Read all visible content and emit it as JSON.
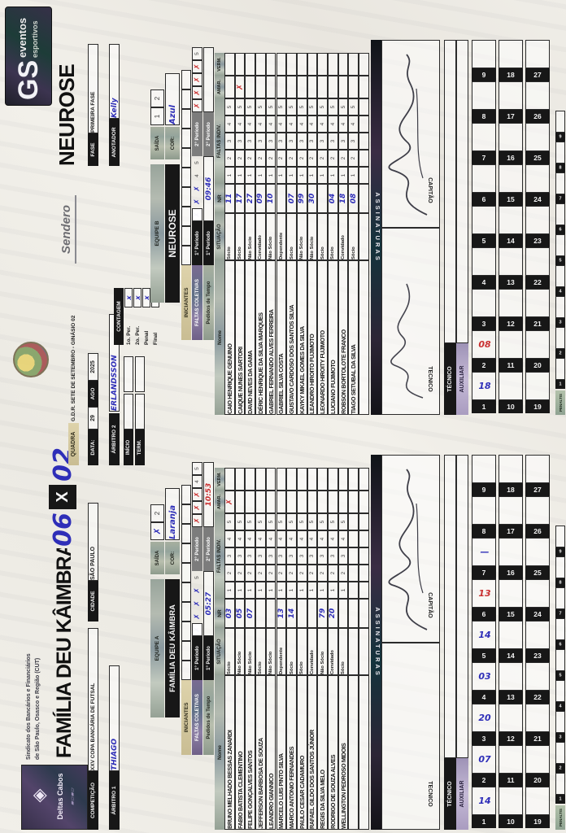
{
  "match": {
    "home_title": "FAMÍLIA DEU KÂIMBRA",
    "score_home": "06",
    "score_x": "X",
    "score_away": "02",
    "away_title": "NEUROSE"
  },
  "logos": {
    "deltas_line1": "Deltas Cabos",
    "sindicato_line1": "Sindicato dos Bancários e Financiários",
    "sindicato_line2": "de São Paulo, Osasco e Região (CUT)",
    "sendero": "Sendero",
    "gs_monogram": "GS",
    "gs_word1": "eventos",
    "gs_word2": "esportivos"
  },
  "info": {
    "competicao_label": "COMPETIÇÃO",
    "competicao_value": "XXV COPA BANCÁRIA DE FUTSAL",
    "quadra_label": "QUADRA",
    "quadra_value": "G.D.R. SETE DE SETEMBRO - GINÁSIO 02",
    "arbitro1_label": "ÁRBITRO 1",
    "arbitro1_value": "THIAGO",
    "arbitro2_label": "ÁRBITRO 2",
    "arbitro2_value": "ERLANDSSON",
    "cidade_label": "CIDADE",
    "cidade_value": "SÃO PAULO",
    "fase_label": "FASE",
    "fase_value": "PRIMEIRA FASE",
    "anotador_label": "ANOTADOR",
    "anotador_value": "Kelly",
    "data_label": "DATA:",
    "data_dia": "29",
    "data_mes": "AGO",
    "data_ano": "2025",
    "inicio_label": "INÍCIO",
    "term_label": "TERM.",
    "contagem_label": "CONTAGEM",
    "contagem_rows": [
      {
        "label": "1o. Per.",
        "mark": "x"
      },
      {
        "label": "2o. Per.",
        "mark": "x"
      },
      {
        "label": "Penal",
        "mark": "x"
      },
      {
        "label": "Final",
        "mark": "x"
      }
    ]
  },
  "section_labels": {
    "saida": "SAÍDA",
    "cor": "COR:",
    "iniciantes": "INICIANTES",
    "faltas_coletivas": "FALTAS COLETIVAS",
    "pedidos": "Pedidos de Tempo",
    "p1": "1° Período",
    "p2": "2° Período",
    "nome": "Nome",
    "situacao": "SITUAÇÃO",
    "nr": "NR",
    "faltas_indiv": "FALTAS INDIV.",
    "falta_digits": [
      "1",
      "2",
      "3",
      "4",
      "5"
    ],
    "amar": "AMAR.",
    "verm": "VERM.",
    "assinaturas": "ASSINATURAS",
    "tecnico_sig": "TECNICO",
    "capitao_sig": "CAPITÃO",
    "tecnico": "TÉCNICO",
    "auxiliar": "AUXILIAR",
    "penaltis": "PENALTIS",
    "goal_dash": "—",
    "mark_x": "✗"
  },
  "teams": [
    {
      "equipe": "EQUIPE A",
      "name": "FAMÍLIA DEU KÂIMBRA",
      "saida_cells": [
        {
          "text": "✗",
          "hand": true,
          "color": "blue"
        },
        {
          "text": "2",
          "hand": false
        }
      ],
      "cor_value": "Laranja",
      "cor_color": "blue",
      "faltas_p1": {
        "marks": 4,
        "color": "blue"
      },
      "faltas_p2": {
        "marks": 3,
        "color": "red"
      },
      "pedidos_p1": {
        "value": "05:27",
        "color": "blue"
      },
      "pedidos_p2": {
        "value": "10:53",
        "color": "red"
      },
      "players": [
        {
          "nome": "BRUNO MELHADO BESSAS ZANARDI",
          "situacao": "Sócio",
          "nr": "03",
          "amar": "✗"
        },
        {
          "nome": "FABIO BATISTA CLEMENTINO",
          "situacao": "Não Sócio",
          "nr": "05"
        },
        {
          "nome": "FELIPE GONÇALVES SANTOS",
          "situacao": "Não Sócio",
          "nr": "07"
        },
        {
          "nome": "JEFFERSON BARBOSA DE SOUZA",
          "situacao": "Sócio",
          "nr": ""
        },
        {
          "nome": "LEANDRO GIANNICO",
          "situacao": "Não Sócio",
          "nr": ""
        },
        {
          "nome": "MARCELO LUIS PINTO SILVA",
          "situacao": "Dependente",
          "nr": "13"
        },
        {
          "nome": "MARCO ANTONIO FERNANDES",
          "situacao": "Sócio",
          "nr": "14"
        },
        {
          "nome": "PAULO CESAR CADAMURO",
          "situacao": "Sócio",
          "nr": ""
        },
        {
          "nome": "RAFAEL GILDO DOS SANTOS JÚNIOR",
          "situacao": "Convidado",
          "nr": ""
        },
        {
          "nome": "REGIS DA SILVA MELO",
          "situacao": "Não Sócio",
          "nr": "79"
        },
        {
          "nome": "RODRIGO DE SOUZA ALVES",
          "situacao": "Convidado",
          "nr": "20"
        },
        {
          "nome": "WELLINGTON PEDROSO MIDOIS",
          "situacao": "Sócio",
          "nr": ""
        }
      ],
      "goals": [
        {
          "v": "14",
          "c": "blue"
        },
        {
          "v": "07",
          "c": "blue"
        },
        {
          "v": "20",
          "c": "blue"
        },
        {
          "v": "03",
          "c": "blue"
        },
        {
          "v": "14",
          "c": "blue"
        },
        {
          "v": "13",
          "c": "red"
        },
        {
          "v": "—",
          "c": "blue"
        },
        null,
        null
      ],
      "sig_tecnico": false,
      "sig_capitao": true
    },
    {
      "equipe": "EQUIPE B",
      "name": "NEUROSE",
      "saida_cells": [
        {
          "text": "1",
          "hand": false
        },
        {
          "text": "2",
          "hand": false
        }
      ],
      "cor_value": "Azul",
      "cor_color": "blue",
      "faltas_p1": {
        "marks": 3,
        "color": "blue"
      },
      "faltas_p2": {
        "marks": 4,
        "color": "red"
      },
      "pedidos_p1": {
        "value": "09:46",
        "color": "blue"
      },
      "pedidos_p2": {
        "value": "",
        "color": "blue"
      },
      "players": [
        {
          "nome": "CAIO HENRIQUE GENUINO",
          "situacao": "Sócio",
          "nr": "11"
        },
        {
          "nome": "CAIQUE NUNES SARTORI",
          "situacao": "Sócio",
          "nr": "17",
          "amar": "✗"
        },
        {
          "nome": "DAVID NEVES DA GAMA",
          "situacao": "Não Sócio",
          "nr": "27"
        },
        {
          "nome": "DÉRIC HENRIQUE DA SILVA MARQUES",
          "situacao": "Convidado",
          "nr": "09"
        },
        {
          "nome": "GABRIEL FERNANDO ALVES FERREIRA",
          "situacao": "Não Sócio",
          "nr": "10"
        },
        {
          "nome": "GABRIEL SILVA COSTA",
          "situacao": "Dependente",
          "nr": ""
        },
        {
          "nome": "GUSTAVO CARDOSO DOS SANTOS SILVA",
          "situacao": "Sócio",
          "nr": "07"
        },
        {
          "nome": "KAYKY MIKAEL GOMES DA SILVA",
          "situacao": "Não Sócio",
          "nr": "99"
        },
        {
          "nome": "LEANDRO HIROITO FUJIMOTO",
          "situacao": "Não Sócio",
          "nr": "30"
        },
        {
          "nome": "LEONARDO HIROITY FUJIMOTO",
          "situacao": "Sócio",
          "nr": ""
        },
        {
          "nome": "LUCIANO FUJIMOTO",
          "situacao": "Sócio",
          "nr": "04"
        },
        {
          "nome": "ROBSON BORTOLOTE FRANCO",
          "situacao": "Convidado",
          "nr": "18"
        },
        {
          "nome": "TIAGO SETUBAL DA SILVA",
          "situacao": "Sócio",
          "nr": "08"
        }
      ],
      "goals": [
        {
          "v": "18",
          "c": "blue"
        },
        {
          "v": "08",
          "c": "red"
        },
        null,
        null,
        null,
        null,
        null,
        null,
        null
      ],
      "sig_tecnico": true,
      "sig_capitao": true
    }
  ]
}
